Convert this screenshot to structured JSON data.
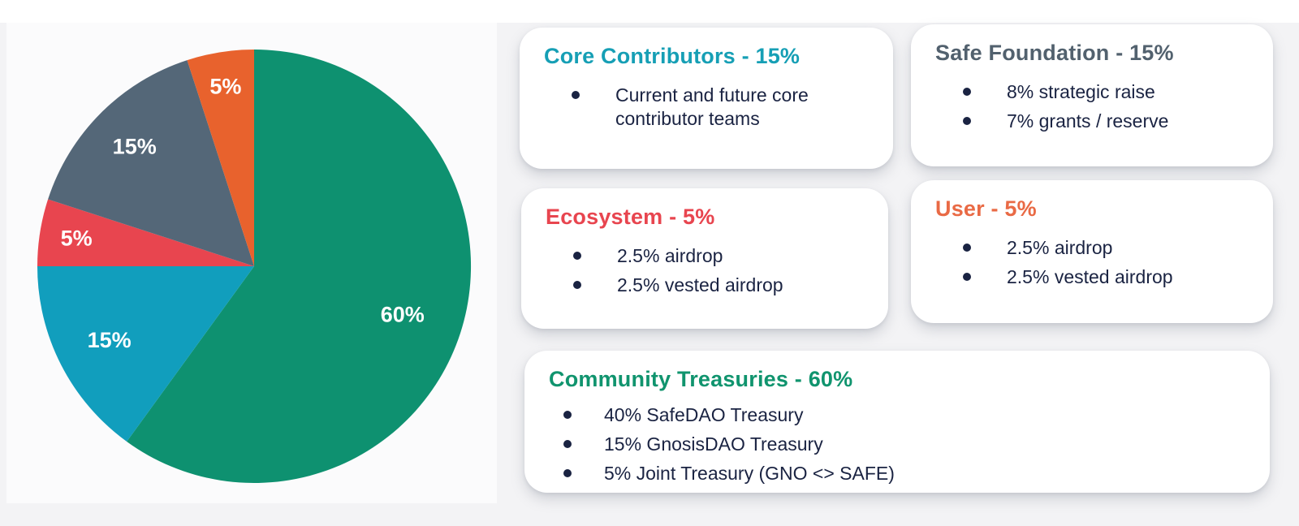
{
  "page": {
    "background_color": "#F3F3F5",
    "top_strip_color": "#FFFFFF",
    "pie_panel_color": "#FBFBFC",
    "body_text_color": "#1A2342"
  },
  "chart_data": {
    "type": "pie",
    "title": "",
    "legend_position": "none",
    "start_angle_deg": 0,
    "direction": "clockwise",
    "label_color": "#FFFFFF",
    "label_radius": [
      0.72,
      0.75,
      0.83,
      0.78,
      0.84
    ],
    "categories": [
      "Community Treasuries",
      "Core Contributors",
      "Ecosystem",
      "Safe Foundation",
      "User"
    ],
    "values": [
      60,
      15,
      5,
      15,
      5
    ],
    "slices": [
      {
        "label": "Community Treasuries",
        "value": 60,
        "display": "60%",
        "color": "#0E9170"
      },
      {
        "label": "Core Contributors",
        "value": 15,
        "display": "15%",
        "color": "#119EBD"
      },
      {
        "label": "Ecosystem",
        "value": 5,
        "display": "5%",
        "color": "#E8454F"
      },
      {
        "label": "Safe Foundation",
        "value": 15,
        "display": "15%",
        "color": "#546778"
      },
      {
        "label": "User",
        "value": 5,
        "display": "5%",
        "color": "#E8622D"
      }
    ]
  },
  "cards": [
    {
      "id": "core-contributors",
      "title": "Core Contributors - 15%",
      "title_color": "#169FB5",
      "bullets": [
        "Current and future core contributor teams"
      ]
    },
    {
      "id": "safe-foundation",
      "title": "Safe Foundation - 15%",
      "title_color": "#52616E",
      "bullets": [
        "8% strategic raise",
        "7% grants / reserve"
      ]
    },
    {
      "id": "ecosystem",
      "title": "Ecosystem - 5%",
      "title_color": "#E8454F",
      "bullets": [
        "2.5% airdrop",
        "2.5% vested airdrop"
      ]
    },
    {
      "id": "user",
      "title": "User - 5%",
      "title_color": "#E96A45",
      "bullets": [
        "2.5% airdrop",
        "2.5% vested airdrop"
      ]
    },
    {
      "id": "community-treasuries",
      "title": "Community Treasuries - 60%",
      "title_color": "#10946E",
      "bullets": [
        "40% SafeDAO Treasury",
        "15% GnosisDAO Treasury",
        "5% Joint Treasury (GNO <> SAFE)"
      ]
    }
  ]
}
